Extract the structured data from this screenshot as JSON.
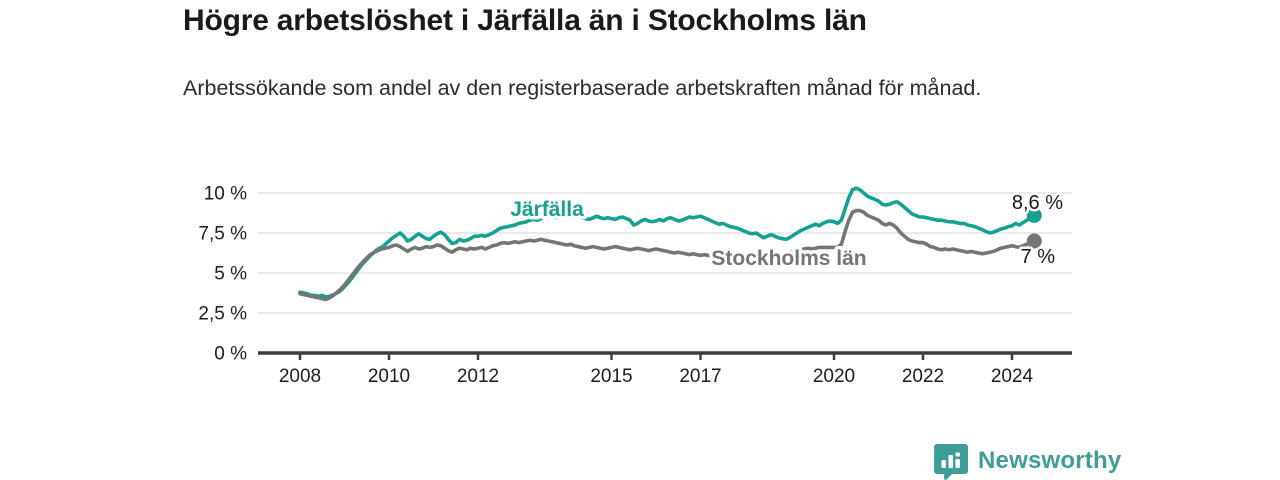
{
  "title": "Högre arbetslöshet i Järfälla än i Stockholms län",
  "subtitle": "Arbetssökande som andel av den registerbaserade arbetskraften månad för månad.",
  "branding": {
    "wordmark": "Newsworthy",
    "logo_icon": "bar-chart-speech-bubble-icon",
    "brand_color": "#3f9d97"
  },
  "colors": {
    "jarfalla": "#14a192",
    "stockholm": "#757575",
    "grid": "#dcdcdc",
    "axis": "#3d3d3d",
    "value_label": "#1a1a1a",
    "tick_text": "#1d1d1d"
  },
  "chart_data": {
    "type": "line",
    "title": "Högre arbetslöshet i Järfälla än i Stockholms län",
    "subtitle": "Arbetssökande som andel av den registerbaserade arbetskraften månad för månad.",
    "x_unit": "month",
    "x_start": "2008-01",
    "x_end": "2024-07",
    "ylim": [
      0,
      10
    ],
    "grid": true,
    "yticks": [
      "0 %",
      "2,5 %",
      "5 %",
      "7,5 %",
      "10 %"
    ],
    "ytick_values": [
      0,
      2.5,
      5,
      7.5,
      10
    ],
    "xticks": [
      2008,
      2010,
      2012,
      2015,
      2017,
      2020,
      2022,
      2024
    ],
    "series": [
      {
        "name": "Järfälla",
        "color": "#14a192",
        "end_label": "8,6 %",
        "end_value": 8.6,
        "values": [
          3.8,
          3.75,
          3.7,
          3.6,
          3.6,
          3.55,
          3.6,
          3.5,
          3.55,
          3.65,
          3.75,
          3.9,
          4.15,
          4.4,
          4.7,
          5.0,
          5.3,
          5.6,
          5.85,
          6.1,
          6.3,
          6.5,
          6.6,
          6.8,
          7.0,
          7.2,
          7.35,
          7.5,
          7.3,
          7.0,
          7.1,
          7.3,
          7.45,
          7.3,
          7.15,
          7.1,
          7.3,
          7.45,
          7.55,
          7.4,
          7.1,
          6.85,
          6.9,
          7.1,
          7.0,
          7.05,
          7.15,
          7.3,
          7.3,
          7.35,
          7.3,
          7.4,
          7.5,
          7.65,
          7.8,
          7.85,
          7.9,
          7.95,
          8.0,
          8.1,
          8.15,
          8.2,
          8.3,
          8.35,
          8.3,
          8.4,
          8.5,
          8.55,
          8.5,
          8.45,
          8.5,
          8.55,
          8.5,
          8.55,
          8.6,
          8.5,
          8.45,
          8.4,
          8.35,
          8.45,
          8.55,
          8.45,
          8.4,
          8.45,
          8.4,
          8.35,
          8.45,
          8.5,
          8.4,
          8.3,
          8.0,
          8.1,
          8.25,
          8.35,
          8.25,
          8.2,
          8.25,
          8.35,
          8.25,
          8.4,
          8.45,
          8.35,
          8.25,
          8.3,
          8.4,
          8.5,
          8.45,
          8.5,
          8.55,
          8.45,
          8.35,
          8.25,
          8.15,
          8.05,
          8.1,
          8.0,
          7.9,
          7.85,
          7.8,
          7.7,
          7.6,
          7.5,
          7.45,
          7.5,
          7.35,
          7.2,
          7.3,
          7.4,
          7.3,
          7.2,
          7.15,
          7.1,
          7.2,
          7.35,
          7.5,
          7.65,
          7.75,
          7.85,
          7.95,
          8.05,
          7.95,
          8.1,
          8.2,
          8.25,
          8.2,
          8.1,
          8.3,
          9.0,
          9.7,
          10.2,
          10.3,
          10.2,
          10.0,
          9.8,
          9.7,
          9.6,
          9.5,
          9.3,
          9.25,
          9.3,
          9.4,
          9.45,
          9.3,
          9.1,
          8.9,
          8.7,
          8.6,
          8.5,
          8.5,
          8.45,
          8.4,
          8.35,
          8.3,
          8.3,
          8.25,
          8.2,
          8.2,
          8.15,
          8.1,
          8.1,
          8.0,
          7.95,
          7.9,
          7.8,
          7.7,
          7.6,
          7.5,
          7.55,
          7.65,
          7.75,
          7.8,
          7.9,
          7.95,
          8.1,
          8.0,
          8.15,
          8.3,
          8.45,
          8.6
        ]
      },
      {
        "name": "Stockholms län",
        "color": "#757575",
        "end_label": "7 %",
        "end_value": 7.0,
        "values": [
          3.7,
          3.65,
          3.6,
          3.55,
          3.5,
          3.45,
          3.4,
          3.35,
          3.45,
          3.6,
          3.8,
          4.0,
          4.25,
          4.55,
          4.85,
          5.15,
          5.45,
          5.7,
          5.95,
          6.15,
          6.3,
          6.4,
          6.5,
          6.55,
          6.6,
          6.7,
          6.75,
          6.65,
          6.5,
          6.35,
          6.5,
          6.6,
          6.5,
          6.55,
          6.65,
          6.6,
          6.65,
          6.75,
          6.7,
          6.55,
          6.4,
          6.3,
          6.45,
          6.55,
          6.5,
          6.45,
          6.55,
          6.5,
          6.55,
          6.6,
          6.5,
          6.6,
          6.7,
          6.75,
          6.85,
          6.9,
          6.85,
          6.9,
          6.95,
          6.9,
          6.95,
          7.0,
          7.05,
          7.0,
          7.05,
          7.1,
          7.05,
          7.0,
          6.95,
          6.9,
          6.85,
          6.8,
          6.75,
          6.8,
          6.7,
          6.65,
          6.6,
          6.55,
          6.6,
          6.65,
          6.6,
          6.55,
          6.5,
          6.55,
          6.6,
          6.65,
          6.6,
          6.55,
          6.5,
          6.45,
          6.5,
          6.55,
          6.5,
          6.45,
          6.4,
          6.45,
          6.5,
          6.45,
          6.4,
          6.35,
          6.3,
          6.25,
          6.3,
          6.25,
          6.2,
          6.15,
          6.2,
          6.15,
          6.1,
          6.15,
          6.1,
          6.05,
          6.1,
          6.15,
          6.1,
          6.05,
          6.1,
          6.15,
          6.1,
          6.1,
          6.1,
          6.05,
          6.0,
          6.05,
          6.1,
          6.05,
          6.0,
          6.05,
          6.1,
          6.15,
          6.2,
          6.25,
          6.3,
          6.35,
          6.4,
          6.45,
          6.5,
          6.55,
          6.5,
          6.55,
          6.6,
          6.6,
          6.6,
          6.6,
          6.6,
          6.6,
          6.8,
          7.6,
          8.3,
          8.8,
          8.9,
          8.9,
          8.8,
          8.6,
          8.5,
          8.4,
          8.3,
          8.1,
          8.0,
          8.1,
          8.0,
          7.8,
          7.5,
          7.3,
          7.1,
          7.0,
          6.95,
          6.9,
          6.9,
          6.8,
          6.65,
          6.6,
          6.5,
          6.45,
          6.5,
          6.45,
          6.5,
          6.45,
          6.4,
          6.35,
          6.3,
          6.35,
          6.3,
          6.25,
          6.2,
          6.25,
          6.3,
          6.35,
          6.45,
          6.55,
          6.6,
          6.65,
          6.7,
          6.65,
          6.6,
          6.7,
          6.8,
          6.9,
          7.0
        ]
      }
    ],
    "legend_position": "inline-labels"
  }
}
